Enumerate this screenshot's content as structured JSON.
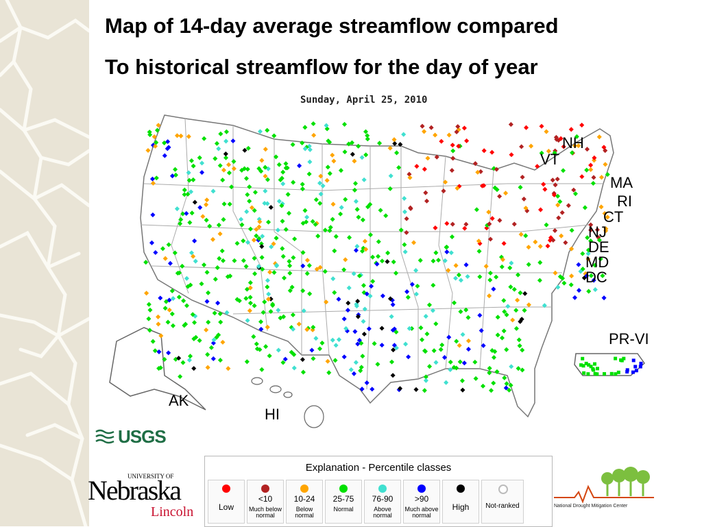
{
  "title": {
    "line1": "Map of 14-day average streamflow compared",
    "line2": "To historical streamflow for the day of year"
  },
  "map": {
    "date": "Sunday, April 25, 2010",
    "region_labels": {
      "nh": "NH",
      "vt": "VT",
      "ma": "MA",
      "ri": "RI",
      "ct": "CT",
      "nj": "NJ",
      "de": "DE",
      "md": "MD",
      "dc": "DC",
      "pr_vi": "PR-VI",
      "ak": "AK",
      "hi": "HI"
    },
    "colors": {
      "low": "#ff0000",
      "much_below": "#b22222",
      "below": "#ffa500",
      "normal": "#00e000",
      "above": "#40e0d0",
      "much_above": "#0000ff",
      "high": "#000000",
      "not_ranked": "#ffffff"
    }
  },
  "logos": {
    "usgs": "USGS",
    "nebraska_univ": "UNIVERSITY OF",
    "nebraska_name": "Nebraska",
    "nebraska_city": "Lincoln",
    "ndmc": "National Drought Mitigation Center"
  },
  "legend": {
    "title": "Explanation - Percentile classes",
    "classes": [
      {
        "label": "Low",
        "sub": "",
        "color": "#ff0000"
      },
      {
        "label": "<10",
        "sub": "Much below normal",
        "color": "#b22222"
      },
      {
        "label": "10-24",
        "sub": "Below normal",
        "color": "#ffa500"
      },
      {
        "label": "25-75",
        "sub": "Normal",
        "color": "#00e000"
      },
      {
        "label": "76-90",
        "sub": "Above normal",
        "color": "#40e0d0"
      },
      {
        "label": ">90",
        "sub": "Much above normal",
        "color": "#0000ff"
      },
      {
        "label": "High",
        "sub": "",
        "color": "#000000"
      },
      {
        "label": "Not-ranked",
        "sub": "",
        "color": "#ffffff"
      }
    ]
  }
}
